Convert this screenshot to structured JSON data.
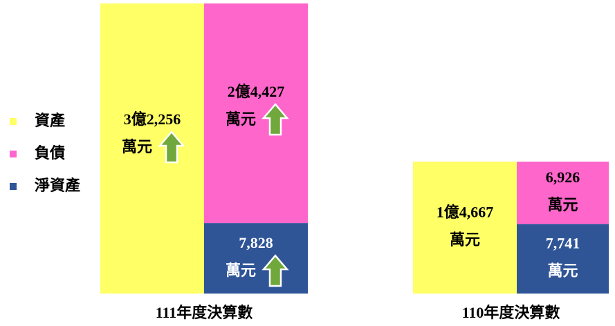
{
  "chart_data": {
    "type": "balance",
    "categories": [
      "111年度決算數",
      "110年度決算數"
    ],
    "unit": "萬元",
    "series": [
      {
        "name": "資產",
        "color": "#ffff66",
        "values": [
          32256,
          14667
        ],
        "value_labels": [
          "3億2,256",
          "1億4,667"
        ]
      },
      {
        "name": "負債",
        "color": "#ff66cc",
        "values": [
          24427,
          6926
        ],
        "value_labels": [
          "2億4,427",
          "6,926"
        ]
      },
      {
        "name": "淨資產",
        "color": "#2f5597",
        "values": [
          7828,
          7741
        ],
        "value_labels": [
          "7,828",
          "7,741"
        ]
      }
    ],
    "increase_arrows": [
      true,
      false
    ]
  }
}
